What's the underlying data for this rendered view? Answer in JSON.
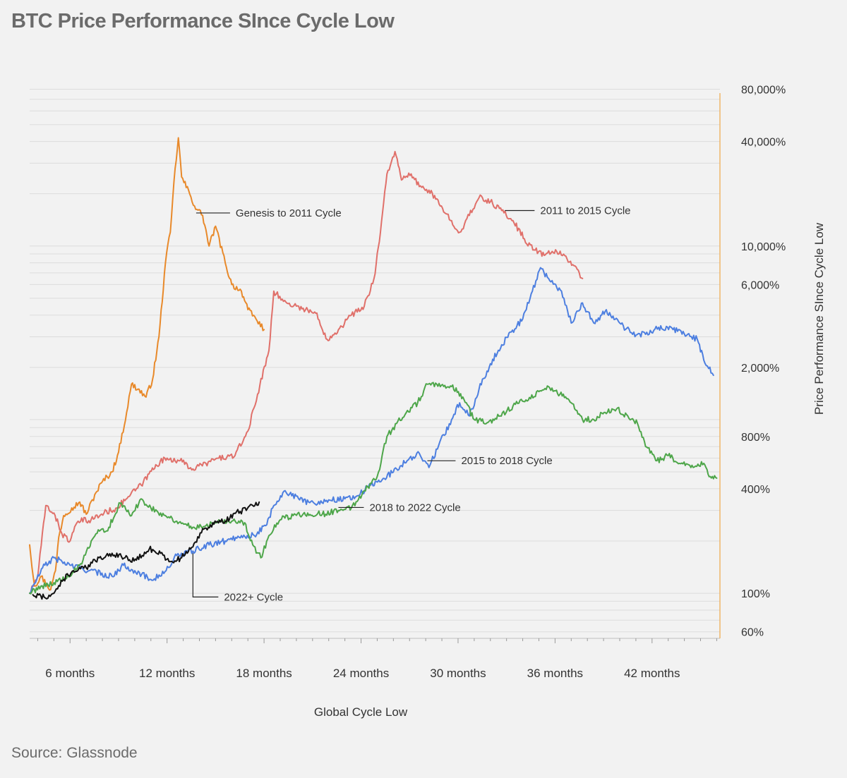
{
  "title": "BTC Price Performance SInce Cycle Low",
  "source": "Source: Glassnode",
  "colors": {
    "background": "#f2f2f2",
    "grid": "#dcdcdc",
    "right_axis": "#f0a848",
    "genesis": "#e8892a",
    "cycle_2011_2015": "#e0706a",
    "cycle_2015_2018": "#4d7fe0",
    "cycle_2018_2022": "#4ea64a",
    "cycle_2022": "#111111"
  },
  "chart_data": {
    "type": "line",
    "title": "BTC Price Performance SInce Cycle Low",
    "xlabel": "Global Cycle Low",
    "ylabel": "Price Performance SInce Cycle Low",
    "x_unit": "months",
    "y_scale": "log",
    "xlim": [
      3.5,
      46.2
    ],
    "ylim": [
      55,
      85000
    ],
    "y_axis_side": "right",
    "grid": "horizontal",
    "x_ticks": [
      {
        "value": 6,
        "label": "6 months"
      },
      {
        "value": 12,
        "label": "12 months"
      },
      {
        "value": 18,
        "label": "18 months"
      },
      {
        "value": 24,
        "label": "24 months"
      },
      {
        "value": 30,
        "label": "30 months"
      },
      {
        "value": 36,
        "label": "36 months"
      },
      {
        "value": 42,
        "label": "42 months"
      }
    ],
    "y_ticks": [
      {
        "value": 80000,
        "label": "80,000%"
      },
      {
        "value": 40000,
        "label": "40,000%"
      },
      {
        "value": 10000,
        "label": "10,000%"
      },
      {
        "value": 6000,
        "label": "6,000%"
      },
      {
        "value": 2000,
        "label": "2,000%"
      },
      {
        "value": 800,
        "label": "800%"
      },
      {
        "value": 400,
        "label": "400%"
      },
      {
        "value": 100,
        "label": "100%"
      },
      {
        "value": 60,
        "label": "60%"
      }
    ],
    "series": [
      {
        "name": "Genesis to 2011 Cycle",
        "color": "#e8892a",
        "points": [
          [
            3.5,
            190
          ],
          [
            3.8,
            110
          ],
          [
            4.2,
            125
          ],
          [
            4.8,
            105
          ],
          [
            5.1,
            135
          ],
          [
            5.3,
            210
          ],
          [
            5.6,
            280
          ],
          [
            6.1,
            310
          ],
          [
            6.6,
            335
          ],
          [
            7.0,
            285
          ],
          [
            7.6,
            380
          ],
          [
            8.0,
            440
          ],
          [
            8.6,
            500
          ],
          [
            9.0,
            650
          ],
          [
            9.5,
            1100
          ],
          [
            9.8,
            1600
          ],
          [
            10.2,
            1500
          ],
          [
            10.7,
            1350
          ],
          [
            11.1,
            1700
          ],
          [
            11.5,
            3000
          ],
          [
            11.9,
            8000
          ],
          [
            12.2,
            12000
          ],
          [
            12.5,
            28000
          ],
          [
            12.7,
            42000
          ],
          [
            12.9,
            25000
          ],
          [
            13.4,
            20000
          ],
          [
            13.7,
            17000
          ],
          [
            14.2,
            15000
          ],
          [
            14.6,
            10000
          ],
          [
            15.0,
            13000
          ],
          [
            15.6,
            8000
          ],
          [
            16.0,
            6000
          ],
          [
            16.6,
            5500
          ],
          [
            17.0,
            4300
          ],
          [
            17.5,
            3800
          ],
          [
            18.0,
            3300
          ]
        ]
      },
      {
        "name": "2011 to 2015 Cycle",
        "color": "#e0706a",
        "points": [
          [
            3.5,
            100
          ],
          [
            4.0,
            125
          ],
          [
            4.5,
            320
          ],
          [
            5.0,
            290
          ],
          [
            5.5,
            220
          ],
          [
            6.0,
            200
          ],
          [
            6.5,
            260
          ],
          [
            7.3,
            265
          ],
          [
            8.1,
            290
          ],
          [
            8.9,
            310
          ],
          [
            9.6,
            360
          ],
          [
            10.4,
            420
          ],
          [
            11.3,
            550
          ],
          [
            12.0,
            600
          ],
          [
            12.8,
            580
          ],
          [
            13.6,
            520
          ],
          [
            14.4,
            560
          ],
          [
            15.2,
            600
          ],
          [
            16.2,
            620
          ],
          [
            17.0,
            860
          ],
          [
            17.6,
            1400
          ],
          [
            18.3,
            2500
          ],
          [
            18.6,
            5500
          ],
          [
            19.2,
            4800
          ],
          [
            20.0,
            4500
          ],
          [
            21.2,
            4100
          ],
          [
            21.9,
            2900
          ],
          [
            22.6,
            3300
          ],
          [
            23.4,
            4000
          ],
          [
            24.2,
            4500
          ],
          [
            24.8,
            6500
          ],
          [
            25.2,
            12000
          ],
          [
            25.6,
            26000
          ],
          [
            26.1,
            35000
          ],
          [
            26.5,
            24000
          ],
          [
            27.1,
            26000
          ],
          [
            27.6,
            22000
          ],
          [
            28.2,
            21000
          ],
          [
            28.9,
            17000
          ],
          [
            29.6,
            14000
          ],
          [
            30.1,
            12000
          ],
          [
            30.7,
            15000
          ],
          [
            31.3,
            19000
          ],
          [
            32.0,
            18000
          ],
          [
            32.7,
            16000
          ],
          [
            33.4,
            14000
          ],
          [
            34.1,
            11000
          ],
          [
            34.7,
            9500
          ],
          [
            35.4,
            8900
          ],
          [
            36.1,
            9300
          ],
          [
            36.6,
            8800
          ],
          [
            37.1,
            7800
          ],
          [
            37.5,
            7000
          ],
          [
            37.7,
            6500
          ]
        ]
      },
      {
        "name": "2015 to 2018 Cycle",
        "color": "#4d7fe0",
        "points": [
          [
            3.5,
            100
          ],
          [
            4.3,
            140
          ],
          [
            5.0,
            160
          ],
          [
            6.0,
            145
          ],
          [
            7.2,
            135
          ],
          [
            8.6,
            125
          ],
          [
            9.3,
            145
          ],
          [
            10.0,
            135
          ],
          [
            11.0,
            120
          ],
          [
            11.8,
            130
          ],
          [
            12.6,
            165
          ],
          [
            13.6,
            175
          ],
          [
            14.6,
            190
          ],
          [
            15.6,
            200
          ],
          [
            16.6,
            215
          ],
          [
            17.4,
            215
          ],
          [
            18.1,
            245
          ],
          [
            18.6,
            320
          ],
          [
            19.3,
            390
          ],
          [
            20.2,
            345
          ],
          [
            21.1,
            330
          ],
          [
            22.0,
            345
          ],
          [
            23.0,
            350
          ],
          [
            23.8,
            365
          ],
          [
            24.6,
            420
          ],
          [
            25.3,
            450
          ],
          [
            26.2,
            520
          ],
          [
            27.0,
            600
          ],
          [
            27.6,
            640
          ],
          [
            28.2,
            530
          ],
          [
            28.8,
            710
          ],
          [
            29.6,
            1000
          ],
          [
            30.1,
            1250
          ],
          [
            30.7,
            1050
          ],
          [
            31.3,
            1500
          ],
          [
            32.0,
            2100
          ],
          [
            32.7,
            2700
          ],
          [
            33.3,
            3200
          ],
          [
            34.0,
            3800
          ],
          [
            34.6,
            5500
          ],
          [
            35.1,
            7500
          ],
          [
            35.6,
            6500
          ],
          [
            36.4,
            5500
          ],
          [
            37.0,
            3600
          ],
          [
            37.7,
            4700
          ],
          [
            38.4,
            3600
          ],
          [
            39.1,
            4200
          ],
          [
            40.0,
            3600
          ],
          [
            40.8,
            3100
          ],
          [
            41.6,
            3100
          ],
          [
            42.4,
            3400
          ],
          [
            43.3,
            3300
          ],
          [
            44.2,
            3100
          ],
          [
            44.8,
            2900
          ],
          [
            45.2,
            2200
          ],
          [
            45.8,
            1800
          ]
        ]
      },
      {
        "name": "2018 to 2022 Cycle",
        "color": "#4ea64a",
        "points": [
          [
            3.5,
            100
          ],
          [
            4.2,
            110
          ],
          [
            5.0,
            115
          ],
          [
            6.0,
            125
          ],
          [
            6.8,
            155
          ],
          [
            7.6,
            220
          ],
          [
            8.4,
            240
          ],
          [
            9.1,
            330
          ],
          [
            9.8,
            280
          ],
          [
            10.4,
            350
          ],
          [
            11.0,
            310
          ],
          [
            11.6,
            290
          ],
          [
            12.6,
            260
          ],
          [
            13.6,
            240
          ],
          [
            14.4,
            245
          ],
          [
            15.2,
            265
          ],
          [
            16.0,
            260
          ],
          [
            16.8,
            255
          ],
          [
            17.3,
            190
          ],
          [
            17.8,
            160
          ],
          [
            18.3,
            215
          ],
          [
            19.0,
            265
          ],
          [
            19.8,
            280
          ],
          [
            20.7,
            290
          ],
          [
            21.6,
            285
          ],
          [
            22.6,
            300
          ],
          [
            23.4,
            310
          ],
          [
            24.2,
            390
          ],
          [
            25.0,
            470
          ],
          [
            25.6,
            800
          ],
          [
            26.2,
            950
          ],
          [
            26.8,
            1100
          ],
          [
            27.5,
            1250
          ],
          [
            28.1,
            1600
          ],
          [
            28.9,
            1550
          ],
          [
            29.6,
            1550
          ],
          [
            30.3,
            1350
          ],
          [
            31.0,
            1000
          ],
          [
            31.8,
            960
          ],
          [
            32.6,
            1050
          ],
          [
            33.4,
            1200
          ],
          [
            34.2,
            1300
          ],
          [
            35.0,
            1450
          ],
          [
            35.6,
            1550
          ],
          [
            36.3,
            1400
          ],
          [
            37.0,
            1250
          ],
          [
            37.7,
            1000
          ],
          [
            38.4,
            1000
          ],
          [
            39.1,
            1100
          ],
          [
            39.8,
            1150
          ],
          [
            40.5,
            1050
          ],
          [
            41.1,
            950
          ],
          [
            41.6,
            700
          ],
          [
            42.3,
            580
          ],
          [
            43.0,
            620
          ],
          [
            43.7,
            560
          ],
          [
            44.4,
            530
          ],
          [
            45.2,
            560
          ],
          [
            45.6,
            470
          ],
          [
            46.0,
            460
          ]
        ]
      },
      {
        "name": "2022+ Cycle",
        "color": "#111111",
        "points": [
          [
            3.7,
            98
          ],
          [
            4.4,
            95
          ],
          [
            5.0,
            100
          ],
          [
            5.6,
            120
          ],
          [
            6.2,
            135
          ],
          [
            7.0,
            140
          ],
          [
            7.8,
            160
          ],
          [
            8.6,
            170
          ],
          [
            9.4,
            160
          ],
          [
            10.1,
            155
          ],
          [
            10.9,
            180
          ],
          [
            11.6,
            170
          ],
          [
            12.2,
            152
          ],
          [
            12.9,
            160
          ],
          [
            13.6,
            185
          ],
          [
            14.2,
            235
          ],
          [
            14.9,
            250
          ],
          [
            15.6,
            260
          ],
          [
            16.3,
            295
          ],
          [
            16.9,
            300
          ],
          [
            17.3,
            320
          ],
          [
            17.7,
            335
          ]
        ]
      }
    ],
    "annotations": [
      {
        "text": "Genesis to 2011 Cycle",
        "x": 13.8,
        "y": 15500,
        "series": "Genesis to 2011 Cycle"
      },
      {
        "text": "2011 to 2015 Cycle",
        "x": 32.9,
        "y": 16000,
        "series": "2011 to 2015 Cycle"
      },
      {
        "text": "2015 to 2018 Cycle",
        "x": 28.1,
        "y": 580,
        "series": "2015 to 2018 Cycle"
      },
      {
        "text": "2018 to 2022 Cycle",
        "x": 22.6,
        "y": 312,
        "series": "2018 to 2022 Cycle"
      },
      {
        "text": "2022+ Cycle",
        "x": 13.6,
        "y": 170,
        "series": "2022+ Cycle"
      }
    ]
  }
}
